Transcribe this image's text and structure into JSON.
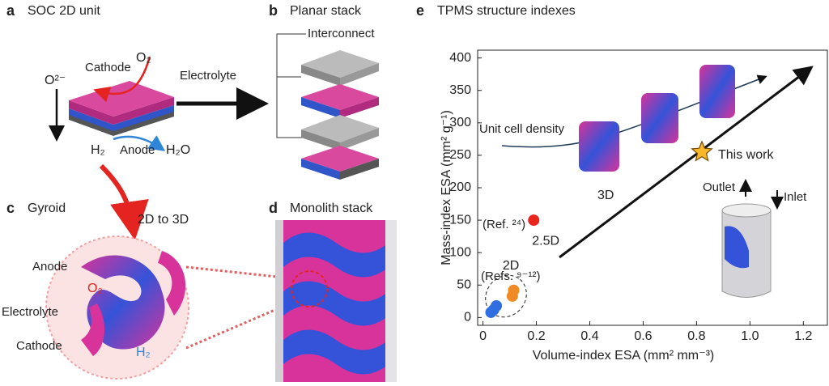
{
  "panels": {
    "a": {
      "letter": "a",
      "title": "SOC 2D unit",
      "labels": [
        "Cathode",
        "O₂",
        "O²⁻",
        "Electrolyte",
        "H₂",
        "Anode",
        "H₂O"
      ]
    },
    "b": {
      "letter": "b",
      "title": "Planar stack",
      "labels": [
        "Interconnect"
      ]
    },
    "c": {
      "letter": "c",
      "title": "Gyroid",
      "labels": [
        "2D to 3D",
        "Anode",
        "O₂",
        "Electrolyte",
        "Cathode",
        "H₂"
      ]
    },
    "d": {
      "letter": "d",
      "title": "Monolith stack"
    }
  },
  "chart_data": {
    "type": "scatter",
    "letter": "e",
    "title": "TPMS structure indexes",
    "x_label": "Volume-index ESA (mm² mm⁻³)",
    "y_label": "Mass-index ESA (mm² g⁻¹)",
    "xlim": [
      -0.02,
      1.29
    ],
    "ylim": [
      -12,
      412
    ],
    "xticks": [
      0,
      0.2,
      0.4,
      0.6,
      0.8,
      {
        "value": 1,
        "label": "1.0"
      },
      1.2
    ],
    "yticks": [
      0,
      50,
      100,
      150,
      200,
      250,
      300,
      350,
      400
    ],
    "series": [
      {
        "name": "2.5D",
        "color": "#e8261e",
        "x": [
          0.19
        ],
        "values": [
          150
        ]
      },
      {
        "name": "2D",
        "color": "#f08a24",
        "x": [
          0.11,
          0.115
        ],
        "values": [
          33,
          42
        ]
      },
      {
        "color": "#2f6fe0",
        "x": [
          0.03,
          0.04,
          0.05
        ],
        "values": [
          8,
          12,
          18
        ]
      },
      {
        "name": "This work",
        "color": "#f6b82a",
        "x": [
          0.82
        ],
        "values": [
          255
        ]
      }
    ],
    "annotations": [
      "Unit cell density",
      "3D",
      "(Ref. ²⁴)",
      "(Refs. ⁹⁻¹²)",
      "Outlet",
      "Inlet"
    ]
  }
}
